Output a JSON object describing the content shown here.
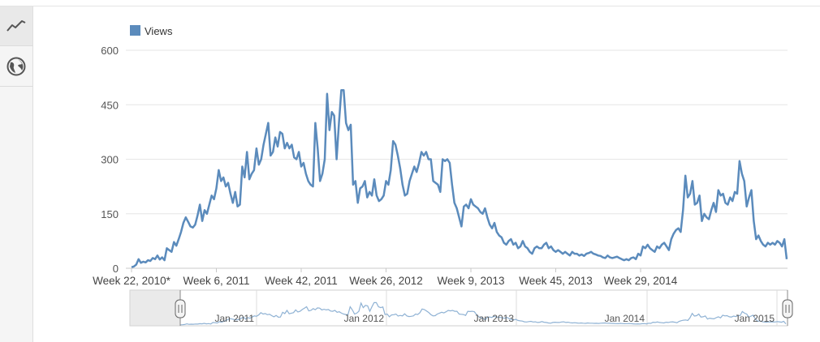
{
  "sidebar": {
    "items": [
      {
        "icon": "line-chart-icon",
        "active": true
      },
      {
        "icon": "globe-icon",
        "active": false
      }
    ]
  },
  "legend": {
    "label": "Views",
    "placement": "top-left"
  },
  "colors": {
    "series": "#5b8bbc",
    "grid": "#e6e6e6",
    "navigator_mask": "#e8e8e8"
  },
  "chart_data": {
    "type": "line",
    "title": "",
    "xlabel": "",
    "ylabel": "",
    "ylim": [
      0,
      600
    ],
    "yticks": [
      0,
      150,
      300,
      450,
      600
    ],
    "xticks": [
      {
        "label": "Week 22, 2010*",
        "index": 0
      },
      {
        "label": "Week 6, 2011",
        "index": 36
      },
      {
        "label": "Week 42, 2011",
        "index": 72
      },
      {
        "label": "Week 26, 2012",
        "index": 108
      },
      {
        "label": "Week 9, 2013",
        "index": 144
      },
      {
        "label": "Week 45, 2013",
        "index": 180
      },
      {
        "label": "Week 29, 2014",
        "index": 216
      }
    ],
    "grid": true,
    "series": [
      {
        "name": "Views",
        "values": [
          3,
          5,
          10,
          25,
          15,
          18,
          16,
          22,
          20,
          28,
          25,
          35,
          24,
          30,
          22,
          55,
          50,
          45,
          72,
          62,
          80,
          100,
          125,
          140,
          128,
          115,
          112,
          120,
          145,
          175,
          130,
          160,
          150,
          175,
          200,
          190,
          220,
          270,
          240,
          250,
          225,
          235,
          205,
          180,
          210,
          170,
          175,
          280,
          250,
          320,
          245,
          260,
          270,
          330,
          285,
          300,
          340,
          370,
          400,
          310,
          320,
          360,
          335,
          375,
          370,
          330,
          345,
          330,
          340,
          305,
          300,
          320,
          280,
          290,
          260,
          240,
          230,
          225,
          400,
          330,
          240,
          260,
          300,
          480,
          380,
          430,
          420,
          300,
          400,
          490,
          490,
          400,
          380,
          395,
          230,
          240,
          180,
          220,
          225,
          240,
          195,
          210,
          200,
          245,
          200,
          185,
          190,
          200,
          240,
          230,
          270,
          350,
          340,
          310,
          275,
          230,
          200,
          205,
          240,
          260,
          280,
          265,
          290,
          320,
          310,
          320,
          300,
          300,
          240,
          235,
          230,
          210,
          300,
          295,
          300,
          290,
          230,
          180,
          165,
          140,
          115,
          170,
          175,
          165,
          190,
          175,
          170,
          165,
          155,
          150,
          165,
          140,
          120,
          110,
          125,
          100,
          90,
          85,
          70,
          65,
          75,
          80,
          65,
          70,
          55,
          60,
          75,
          60,
          55,
          45,
          40,
          55,
          60,
          55,
          55,
          65,
          70,
          55,
          60,
          50,
          45,
          50,
          45,
          40,
          45,
          40,
          35,
          45,
          40,
          40,
          35,
          38,
          34,
          40,
          42,
          45,
          40,
          38,
          35,
          34,
          30,
          28,
          35,
          30,
          28,
          30,
          32,
          28,
          25,
          22,
          25,
          22,
          28,
          30,
          25,
          40,
          35,
          60,
          55,
          65,
          55,
          50,
          45,
          60,
          55,
          65,
          70,
          60,
          50,
          80,
          95,
          105,
          110,
          100,
          160,
          255,
          195,
          205,
          240,
          175,
          180,
          200,
          130,
          150,
          140,
          135,
          160,
          180,
          155,
          215,
          200,
          205,
          180,
          175,
          195,
          185,
          210,
          205,
          295,
          260,
          240,
          170,
          195,
          215,
          130,
          80,
          90,
          75,
          65,
          60,
          70,
          65,
          70,
          65,
          75,
          70,
          60,
          80,
          25
        ]
      }
    ]
  },
  "navigator": {
    "labels": [
      "Jan 2011",
      "Jan 2012",
      "Jan 2013",
      "Jan 2014",
      "Jan 2015"
    ]
  }
}
